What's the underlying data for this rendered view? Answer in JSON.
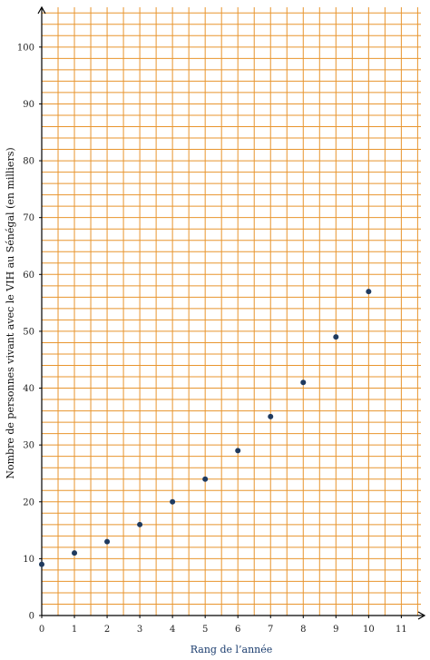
{
  "chart_data": {
    "type": "scatter",
    "xlabel": "Rang de l’année",
    "ylabel": "Nombre de personnes vivant avec le VIH au Sénégal (en milliers)",
    "x": [
      0,
      1,
      2,
      3,
      4,
      5,
      6,
      7,
      8,
      9,
      10
    ],
    "y": [
      9,
      11,
      13,
      16,
      20,
      24,
      29,
      35,
      41,
      49,
      57
    ],
    "xlim": [
      0,
      11.6
    ],
    "ylim": [
      0,
      107
    ],
    "xticks": [
      "0",
      "1",
      "2",
      "3",
      "4",
      "5",
      "6",
      "7",
      "8",
      "9",
      "10",
      "11"
    ],
    "yticks": [
      "0",
      "10",
      "20",
      "30",
      "40",
      "50",
      "60",
      "70",
      "80",
      "90",
      "100"
    ],
    "grid": true,
    "colors": {
      "grid": "#e8952e",
      "axis": "#000000",
      "point": "#1f3a5f"
    }
  }
}
